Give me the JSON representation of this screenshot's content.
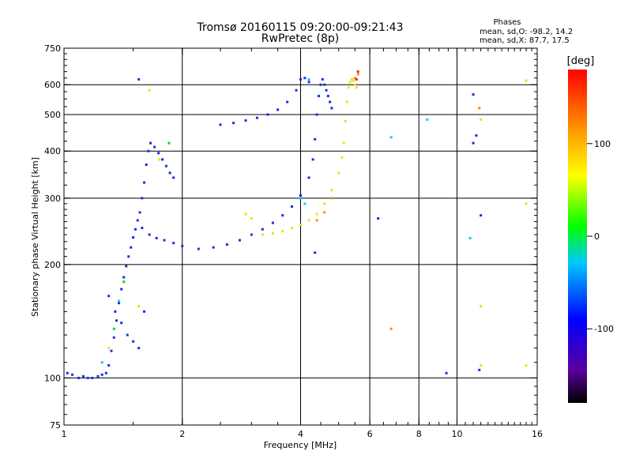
{
  "chart_data": {
    "type": "scatter",
    "title": "Tromsø 20160115 09:20:00-09:21:43",
    "subtitle": "RwPretec (8p)",
    "xlabel": "Frequency [MHz]",
    "ylabel": "Stationary phase Virtual Height [km]",
    "x_scale": "log",
    "y_scale": "log",
    "xlim": [
      1,
      16
    ],
    "ylim": [
      75,
      750
    ],
    "x_ticks": [
      "1",
      "2",
      "4",
      "6",
      "8",
      "10",
      "16"
    ],
    "y_ticks": [
      "75",
      "100",
      "200",
      "300",
      "400",
      "500",
      "600",
      "750"
    ],
    "grid": true,
    "grid_x": [
      2,
      4,
      6,
      8,
      10
    ],
    "grid_y": [
      100,
      200,
      300,
      400,
      500,
      600
    ],
    "stats": {
      "title": "Phases",
      "line_o": "mean, sd,O: -98.2, 14.2",
      "line_x": "mean, sd,X:  87.7, 17.5"
    },
    "colorbar": {
      "label": "[deg]",
      "range": [
        -180,
        180
      ],
      "ticks": [
        "100",
        "0",
        "-100"
      ],
      "colors": [
        "#000000",
        "#5a00a0",
        "#0000ff",
        "#00c8ff",
        "#00ff00",
        "#ffff00",
        "#ff9600",
        "#ff0000"
      ]
    },
    "series": [
      {
        "color": "#1a2ee6",
        "points": [
          [
            1.02,
            103
          ],
          [
            1.05,
            102
          ],
          [
            1.09,
            100
          ],
          [
            1.12,
            101
          ],
          [
            1.15,
            100
          ],
          [
            1.18,
            100
          ],
          [
            1.22,
            101
          ],
          [
            1.25,
            102
          ],
          [
            1.28,
            103
          ],
          [
            1.3,
            108
          ],
          [
            1.32,
            118
          ],
          [
            1.34,
            128
          ],
          [
            1.36,
            142
          ],
          [
            1.38,
            158
          ],
          [
            1.4,
            172
          ],
          [
            1.42,
            185
          ],
          [
            1.44,
            198
          ],
          [
            1.46,
            210
          ],
          [
            1.48,
            222
          ],
          [
            1.5,
            236
          ],
          [
            1.52,
            248
          ],
          [
            1.54,
            262
          ],
          [
            1.56,
            275
          ],
          [
            1.58,
            300
          ],
          [
            1.6,
            330
          ],
          [
            1.62,
            368
          ],
          [
            1.64,
            400
          ],
          [
            1.66,
            420
          ],
          [
            1.7,
            410
          ],
          [
            1.74,
            395
          ],
          [
            1.78,
            380
          ],
          [
            1.82,
            365
          ],
          [
            1.86,
            350
          ],
          [
            1.9,
            340
          ],
          [
            1.58,
            250
          ],
          [
            1.65,
            240
          ],
          [
            1.72,
            235
          ],
          [
            1.8,
            232
          ],
          [
            1.9,
            228
          ],
          [
            2.0,
            224
          ],
          [
            2.2,
            220
          ],
          [
            2.4,
            222
          ],
          [
            2.6,
            226
          ],
          [
            2.8,
            232
          ],
          [
            3.0,
            240
          ],
          [
            3.2,
            248
          ],
          [
            3.4,
            258
          ],
          [
            3.6,
            270
          ],
          [
            3.8,
            285
          ],
          [
            4.0,
            305
          ],
          [
            4.2,
            340
          ],
          [
            4.3,
            380
          ],
          [
            4.35,
            430
          ],
          [
            4.4,
            500
          ],
          [
            4.45,
            560
          ],
          [
            4.5,
            600
          ],
          [
            4.55,
            620
          ],
          [
            4.6,
            600
          ],
          [
            4.65,
            580
          ],
          [
            4.7,
            560
          ],
          [
            4.75,
            540
          ],
          [
            4.8,
            520
          ],
          [
            2.5,
            470
          ],
          [
            2.7,
            475
          ],
          [
            2.9,
            482
          ],
          [
            3.1,
            490
          ],
          [
            3.3,
            500
          ],
          [
            3.5,
            515
          ],
          [
            3.7,
            540
          ],
          [
            3.9,
            580
          ],
          [
            4.0,
            620
          ],
          [
            4.1,
            625
          ],
          [
            4.2,
            610
          ],
          [
            1.3,
            165
          ],
          [
            1.35,
            150
          ],
          [
            1.4,
            140
          ],
          [
            1.45,
            130
          ],
          [
            1.5,
            125
          ],
          [
            1.55,
            120
          ],
          [
            1.6,
            150
          ],
          [
            1.55,
            620
          ],
          [
            4.35,
            215
          ],
          [
            6.3,
            265
          ],
          [
            11.0,
            565
          ],
          [
            11.2,
            440
          ],
          [
            11.0,
            420
          ],
          [
            11.5,
            270
          ],
          [
            9.4,
            103
          ],
          [
            11.4,
            105
          ]
        ]
      },
      {
        "color": "#e6e600",
        "points": [
          [
            3.2,
            240
          ],
          [
            3.4,
            242
          ],
          [
            3.6,
            245
          ],
          [
            3.8,
            250
          ],
          [
            4.0,
            255
          ],
          [
            4.2,
            262
          ],
          [
            4.4,
            272
          ],
          [
            4.6,
            290
          ],
          [
            4.8,
            315
          ],
          [
            5.0,
            350
          ],
          [
            5.1,
            385
          ],
          [
            5.15,
            420
          ],
          [
            5.2,
            480
          ],
          [
            5.25,
            540
          ],
          [
            5.3,
            590
          ],
          [
            5.35,
            610
          ],
          [
            5.4,
            620
          ],
          [
            5.45,
            615
          ],
          [
            5.5,
            600
          ],
          [
            5.55,
            590
          ],
          [
            3.0,
            265
          ],
          [
            2.9,
            272
          ],
          [
            1.65,
            580
          ],
          [
            1.55,
            155
          ],
          [
            1.75,
            380
          ],
          [
            1.3,
            120
          ],
          [
            15.0,
            615
          ],
          [
            15.0,
            290
          ],
          [
            11.5,
            485
          ],
          [
            11.5,
            155
          ],
          [
            15.0,
            108
          ],
          [
            11.5,
            108
          ],
          [
            11.4,
            520
          ]
        ]
      },
      {
        "color": "#ff8c00",
        "points": [
          [
            4.4,
            262
          ],
          [
            4.6,
            275
          ],
          [
            4.8,
            300
          ],
          [
            5.5,
            625
          ],
          [
            5.6,
            640
          ],
          [
            6.8,
            135
          ],
          [
            11.4,
            520
          ]
        ]
      },
      {
        "color": "#00d2ff",
        "points": [
          [
            4.1,
            290
          ],
          [
            4.0,
            300
          ],
          [
            6.8,
            435
          ],
          [
            8.4,
            485
          ],
          [
            10.8,
            235
          ],
          [
            1.38,
            160
          ],
          [
            1.25,
            110
          ],
          [
            4.2,
            620
          ]
        ]
      },
      {
        "color": "#00dc28",
        "points": [
          [
            1.85,
            420
          ],
          [
            1.34,
            135
          ],
          [
            1.42,
            180
          ]
        ]
      },
      {
        "color": "#ff1e1e",
        "points": [
          [
            5.6,
            650
          ],
          [
            5.55,
            620
          ]
        ]
      }
    ]
  }
}
